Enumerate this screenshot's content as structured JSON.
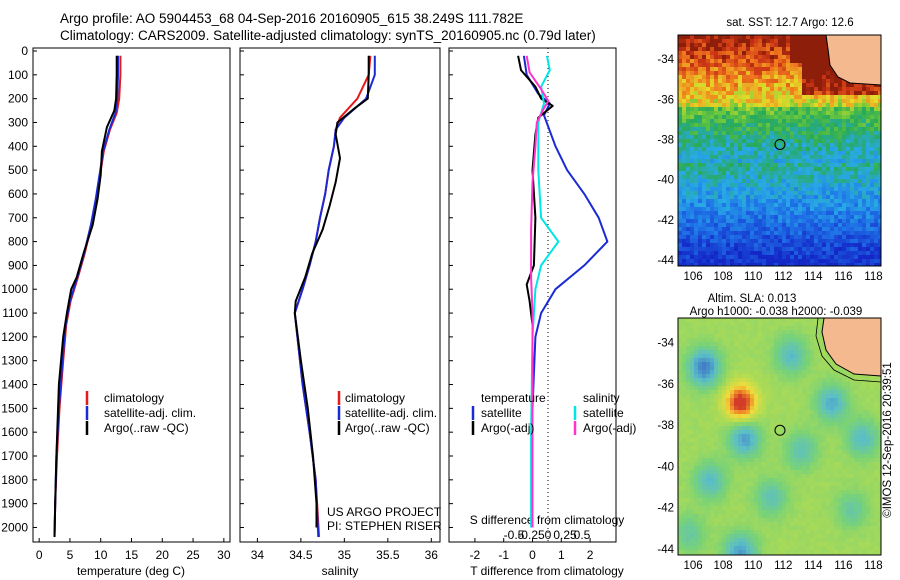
{
  "header": {
    "line1": "Argo profile: AO 5904453_68 04-Sep-2016 20160905_615 38.249S 111.782E",
    "line2": "Climatology: CARS2009. Satellite-adjusted climatology: synTS_20160905.nc (0.79d later)"
  },
  "colors": {
    "climatology": "#e41a1c",
    "satellite": "#1a2bd6",
    "argo": "#000000",
    "satellite_salinity": "#00e5e5",
    "argo_salinity": "#ff33cc"
  },
  "chart_data": [
    {
      "type": "line",
      "panel": "temperature",
      "xlabel": "temperature (deg C)",
      "xlim": [
        -1,
        31
      ],
      "xticks": [
        0,
        5,
        10,
        15,
        20,
        25,
        30
      ],
      "ylim": [
        2050,
        0
      ],
      "yticks": [
        0,
        100,
        200,
        300,
        400,
        500,
        600,
        700,
        800,
        900,
        1000,
        1100,
        1200,
        1300,
        1400,
        1500,
        1600,
        1700,
        1800,
        1900,
        2000
      ],
      "legend": [
        "climatology",
        "satellite-adj. clim.",
        "Argo(..raw -QC)"
      ],
      "series": [
        {
          "name": "climatology",
          "color_key": "climatology",
          "points": [
            [
              13.2,
              20
            ],
            [
              13.2,
              100
            ],
            [
              13.0,
              200
            ],
            [
              12.6,
              260
            ],
            [
              11.5,
              330
            ],
            [
              10.5,
              420
            ],
            [
              9.9,
              520
            ],
            [
              9.3,
              620
            ],
            [
              8.5,
              730
            ],
            [
              7.4,
              850
            ],
            [
              6.3,
              950
            ],
            [
              5.1,
              1050
            ],
            [
              4.4,
              1150
            ],
            [
              3.9,
              1300
            ],
            [
              3.3,
              1500
            ],
            [
              2.9,
              1700
            ],
            [
              2.6,
              1900
            ],
            [
              2.5,
              2040
            ]
          ]
        },
        {
          "name": "satellite-adj. clim.",
          "color_key": "satellite",
          "points": [
            [
              12.8,
              20
            ],
            [
              12.8,
              100
            ],
            [
              12.7,
              200
            ],
            [
              12.4,
              260
            ],
            [
              11.4,
              330
            ],
            [
              10.4,
              420
            ],
            [
              9.8,
              520
            ],
            [
              9.2,
              620
            ],
            [
              8.4,
              730
            ],
            [
              7.3,
              850
            ],
            [
              6.2,
              950
            ],
            [
              5.0,
              1050
            ],
            [
              4.3,
              1150
            ],
            [
              3.8,
              1300
            ],
            [
              3.2,
              1500
            ],
            [
              2.8,
              1700
            ],
            [
              2.6,
              1900
            ],
            [
              2.5,
              2040
            ]
          ]
        },
        {
          "name": "Argo(..raw -QC)",
          "color_key": "argo",
          "points": [
            [
              12.6,
              20
            ],
            [
              12.6,
              100
            ],
            [
              12.5,
              200
            ],
            [
              12.2,
              250
            ],
            [
              11.0,
              320
            ],
            [
              10.2,
              420
            ],
            [
              10.0,
              520
            ],
            [
              9.5,
              620
            ],
            [
              8.7,
              730
            ],
            [
              7.2,
              850
            ],
            [
              6.1,
              950
            ],
            [
              5.2,
              1000
            ],
            [
              4.5,
              1100
            ],
            [
              3.9,
              1200
            ],
            [
              3.2,
              1400
            ],
            [
              2.8,
              1700
            ],
            [
              2.6,
              1900
            ],
            [
              2.5,
              2040
            ]
          ]
        }
      ]
    },
    {
      "type": "line",
      "panel": "salinity",
      "xlabel": "salinity",
      "xlim": [
        33.8,
        36.1
      ],
      "xticks": [
        34,
        34.5,
        35,
        35.5,
        36
      ],
      "ylim": [
        2050,
        0
      ],
      "legend": [
        "climatology",
        "satellite-adj. clim.",
        "Argo(..raw -QC)"
      ],
      "series": [
        {
          "name": "climatology",
          "color_key": "climatology",
          "points": [
            [
              35.3,
              20
            ],
            [
              35.28,
              100
            ],
            [
              35.15,
              200
            ],
            [
              34.95,
              280
            ],
            [
              34.9,
              330
            ],
            [
              34.88,
              400
            ],
            [
              34.82,
              500
            ],
            [
              34.78,
              600
            ],
            [
              34.72,
              700
            ],
            [
              34.67,
              800
            ],
            [
              34.6,
              900
            ],
            [
              34.52,
              1000
            ],
            [
              34.43,
              1100
            ],
            [
              34.46,
              1200
            ],
            [
              34.52,
              1400
            ],
            [
              34.6,
              1600
            ],
            [
              34.67,
              1800
            ],
            [
              34.71,
              2040
            ]
          ]
        },
        {
          "name": "satellite-adj. clim.",
          "color_key": "satellite",
          "points": [
            [
              35.35,
              20
            ],
            [
              35.35,
              100
            ],
            [
              35.25,
              200
            ],
            [
              35.0,
              280
            ],
            [
              34.9,
              330
            ],
            [
              34.88,
              400
            ],
            [
              34.82,
              500
            ],
            [
              34.78,
              600
            ],
            [
              34.72,
              700
            ],
            [
              34.67,
              800
            ],
            [
              34.6,
              900
            ],
            [
              34.52,
              1000
            ],
            [
              34.43,
              1100
            ],
            [
              34.46,
              1200
            ],
            [
              34.52,
              1400
            ],
            [
              34.6,
              1600
            ],
            [
              34.67,
              1800
            ],
            [
              34.7,
              2040
            ]
          ]
        },
        {
          "name": "Argo(..raw -QC)",
          "color_key": "argo",
          "points": [
            [
              35.28,
              20
            ],
            [
              35.28,
              100
            ],
            [
              35.27,
              200
            ],
            [
              35.12,
              240
            ],
            [
              34.92,
              300
            ],
            [
              34.9,
              350
            ],
            [
              34.95,
              450
            ],
            [
              34.9,
              550
            ],
            [
              34.83,
              650
            ],
            [
              34.75,
              750
            ],
            [
              34.63,
              850
            ],
            [
              34.55,
              950
            ],
            [
              34.44,
              1050
            ],
            [
              34.43,
              1100
            ],
            [
              34.5,
              1300
            ],
            [
              34.58,
              1500
            ],
            [
              34.64,
              1700
            ],
            [
              34.68,
              1900
            ],
            [
              34.68,
              2000
            ]
          ]
        }
      ]
    },
    {
      "type": "line",
      "panel": "difference",
      "xlabel": "T difference from climatology",
      "xlabel_top": "S difference from climatology",
      "xlim": [
        -2.9,
        2.9
      ],
      "xticks": [
        -2,
        -1,
        0,
        1,
        2
      ],
      "s_xticks": [
        -0.5,
        -0.25,
        0,
        0.25,
        0.5
      ],
      "ylim": [
        2050,
        0
      ],
      "legend_groups": [
        {
          "title": "temperature",
          "entries": [
            "satellite",
            "Argo(-adj)"
          ]
        },
        {
          "title": "salinity",
          "entries": [
            "satellite",
            "Argo(-adj)"
          ]
        }
      ],
      "series": [
        {
          "name": "temperature satellite",
          "color_key": "satellite",
          "points": [
            [
              -0.3,
              20
            ],
            [
              -0.2,
              100
            ],
            [
              0.2,
              180
            ],
            [
              0.6,
              220
            ],
            [
              0.4,
              270
            ],
            [
              0.8,
              400
            ],
            [
              1.2,
              500
            ],
            [
              1.8,
              600
            ],
            [
              2.3,
              700
            ],
            [
              2.6,
              800
            ],
            [
              1.8,
              900
            ],
            [
              0.8,
              1000
            ],
            [
              0.3,
              1100
            ],
            [
              0.1,
              1200
            ],
            [
              0.0,
              1500
            ],
            [
              0.0,
              2000
            ]
          ]
        },
        {
          "name": "temperature Argo(-adj)",
          "color_key": "argo",
          "points": [
            [
              -0.5,
              20
            ],
            [
              -0.4,
              80
            ],
            [
              0.1,
              150
            ],
            [
              0.3,
              200
            ],
            [
              0.7,
              230
            ],
            [
              0.2,
              280
            ],
            [
              0.1,
              350
            ],
            [
              0.0,
              500
            ],
            [
              0.1,
              700
            ],
            [
              0.05,
              900
            ],
            [
              -0.2,
              980
            ],
            [
              -0.1,
              1050
            ],
            [
              0.0,
              1150
            ],
            [
              0.0,
              1400
            ],
            [
              0.0,
              1600
            ],
            [
              0.0,
              2000
            ]
          ]
        },
        {
          "name": "salinity satellite",
          "color_key": "satellite_salinity",
          "points": [
            [
              0.5,
              20
            ],
            [
              0.6,
              80
            ],
            [
              0.3,
              150
            ],
            [
              0.4,
              220
            ],
            [
              0.2,
              300
            ],
            [
              0.2,
              500
            ],
            [
              0.3,
              700
            ],
            [
              0.9,
              800
            ],
            [
              0.3,
              900
            ],
            [
              0.1,
              1000
            ],
            [
              0.0,
              1200
            ],
            [
              -0.05,
              1600
            ],
            [
              -0.05,
              2000
            ]
          ]
        },
        {
          "name": "salinity Argo(-adj)",
          "color_key": "argo_salinity",
          "points": [
            [
              -0.2,
              20
            ],
            [
              -0.1,
              90
            ],
            [
              0.3,
              160
            ],
            [
              0.55,
              210
            ],
            [
              0.4,
              240
            ],
            [
              0.15,
              300
            ],
            [
              0.1,
              400
            ],
            [
              0.0,
              550
            ],
            [
              -0.05,
              750
            ],
            [
              -0.05,
              950
            ],
            [
              0.0,
              1100
            ],
            [
              0.0,
              1400
            ],
            [
              0.0,
              1700
            ],
            [
              0.0,
              2000
            ]
          ]
        }
      ]
    },
    {
      "type": "heatmap",
      "panel": "sst-map",
      "title": "sat. SST: 12.7 Argo: 12.6",
      "xticks": [
        106,
        108,
        110,
        112,
        114,
        116,
        118
      ],
      "yticks": [
        -34,
        -36,
        -38,
        -40,
        -42,
        -44
      ],
      "xlim": [
        105,
        118.5
      ],
      "ylim": [
        -44.3,
        -32.8
      ],
      "argo_position": [
        111.782,
        -38.249
      ]
    },
    {
      "type": "heatmap",
      "panel": "sla-map",
      "title": "Altim. SLA: 0.013",
      "subtitle": "Argo h1000: -0.038 h2000: -0.039",
      "xticks": [
        106,
        108,
        110,
        112,
        114,
        116,
        118
      ],
      "yticks": [
        -34,
        -36,
        -38,
        -40,
        -42,
        -44
      ],
      "xlim": [
        105,
        118.5
      ],
      "ylim": [
        -44.3,
        -32.8
      ],
      "argo_position": [
        111.782,
        -38.249
      ]
    }
  ],
  "annotations": {
    "project": "US ARGO PROJECT",
    "pi": "PI: STEPHEN RISER",
    "stamp": "©IMOS 12-Sep-2016 20:39:51"
  }
}
